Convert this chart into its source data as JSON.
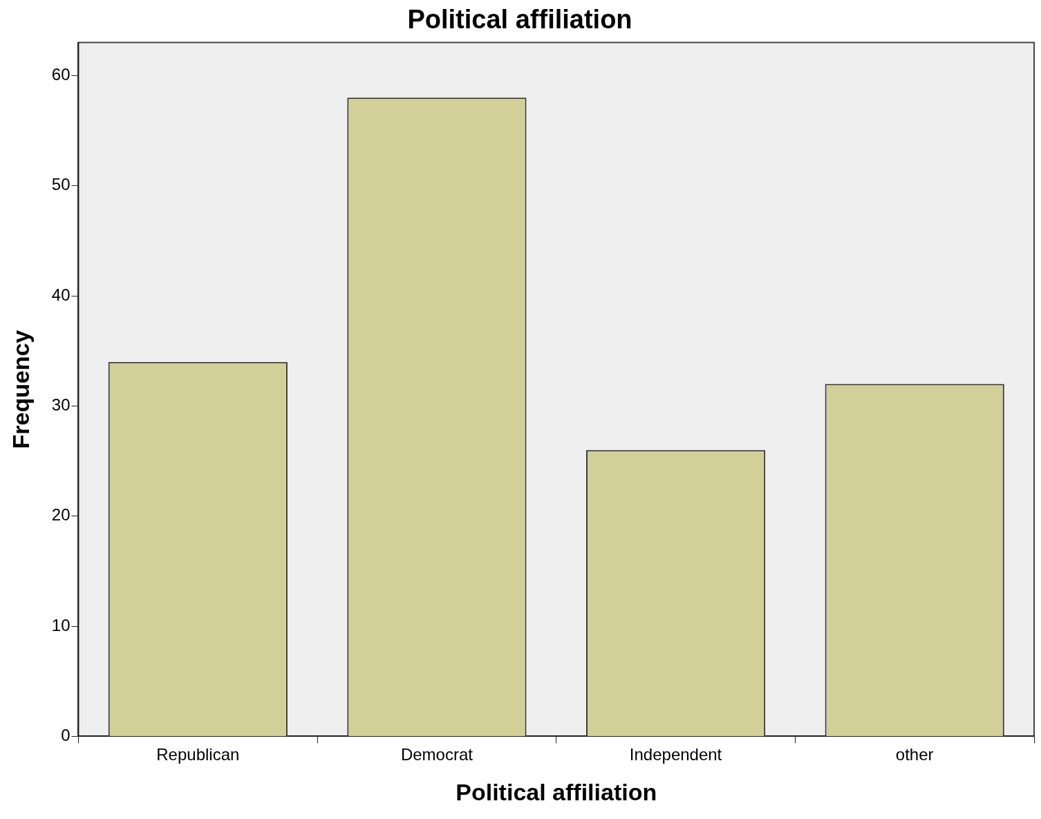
{
  "chart_data": {
    "type": "bar",
    "title": "Political affiliation",
    "xlabel": "Political affiliation",
    "ylabel": "Frequency",
    "categories": [
      "Republican",
      "Democrat",
      "Independent",
      "other"
    ],
    "values": [
      34,
      58,
      26,
      32
    ],
    "color": "#d3cf98",
    "ylim": [
      0,
      63
    ],
    "yticks": [
      0,
      10,
      20,
      30,
      40,
      50,
      60
    ],
    "grid": false,
    "legend": false
  }
}
